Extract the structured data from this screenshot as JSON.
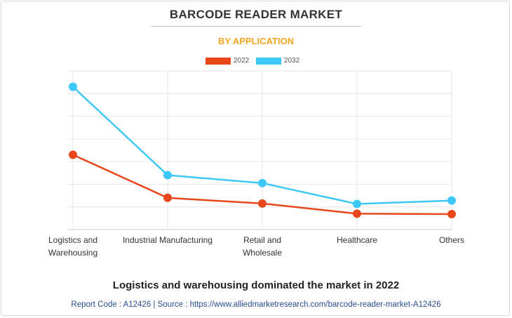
{
  "title": "BARCODE READER MARKET",
  "subtitle": "BY APPLICATION",
  "footer": {
    "headline": "Logistics and warehousing dominated the market in 2022",
    "source": "Report Code : A12426  |  Source : https://www.alliedmarketresearch.com/barcode-reader-market-A12426"
  },
  "chart_data": {
    "type": "line",
    "title": "BARCODE READER MARKET",
    "subtitle": "BY APPLICATION",
    "categories": [
      [
        "Logistics and",
        "Warehousing"
      ],
      [
        "Industrial Manufacturing"
      ],
      [
        "Retail and",
        "Wholesale"
      ],
      [
        "Healthcare"
      ],
      [
        "Others"
      ]
    ],
    "series": [
      {
        "name": "2022",
        "color": "#e8471c",
        "values": [
          33,
          14,
          11.5,
          7,
          6.8
        ]
      },
      {
        "name": "2032",
        "color": "#3ec8f7",
        "values": [
          63,
          24,
          20.5,
          11.3,
          12.8
        ]
      }
    ],
    "ylim": [
      0,
      70
    ],
    "grid": true,
    "legend": "top-center",
    "xlabel": "",
    "ylabel": ""
  }
}
